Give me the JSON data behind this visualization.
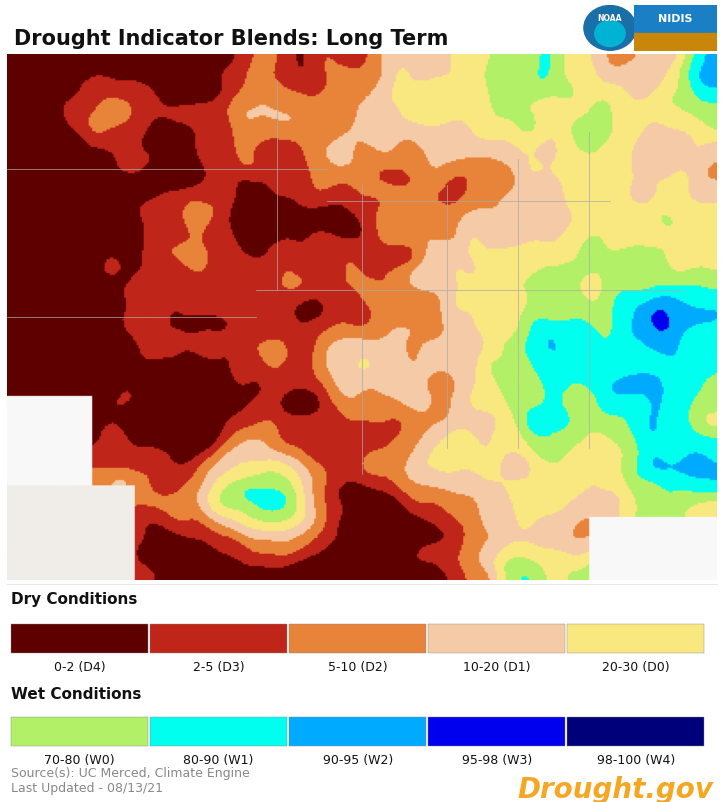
{
  "title": "Drought Indicator Blends: Long Term",
  "title_fontsize": 15,
  "title_fontweight": "bold",
  "background_color": "#ffffff",
  "dry_conditions_label": "Dry Conditions",
  "wet_conditions_label": "Wet Conditions",
  "dry_colors": [
    "#5e0000",
    "#c0251a",
    "#e8843a",
    "#f5cba7",
    "#f9e87f"
  ],
  "dry_labels": [
    "0-2 (D4)",
    "2-5 (D3)",
    "5-10 (D2)",
    "10-20 (D1)",
    "20-30 (D0)"
  ],
  "wet_colors": [
    "#b2f067",
    "#00ffee",
    "#00aaff",
    "#0000ee",
    "#00007a"
  ],
  "wet_labels": [
    "70-80 (W0)",
    "80-90 (W1)",
    "90-95 (W2)",
    "95-98 (W3)",
    "98-100 (W4)"
  ],
  "source_text": "Source(s): UC Merced, Climate Engine\nLast Updated - 08/13/21",
  "source_fontsize": 9,
  "source_color": "#888888",
  "drought_gov_text": "Drought.gov",
  "drought_gov_color": "#f5a623",
  "drought_gov_fontsize": 20,
  "section_label_fontsize": 11,
  "section_label_fontweight": "bold",
  "legend_label_fontsize": 9,
  "fig_width": 7.24,
  "fig_height": 8.03,
  "map_bg_color": "#f0ede8",
  "map_border_color": "#cccccc",
  "noaa_blue": "#1a6fa8",
  "noaa_cyan": "#00b3d4",
  "nidis_blue": "#1a7fc4",
  "nidis_orange": "#c8860a"
}
